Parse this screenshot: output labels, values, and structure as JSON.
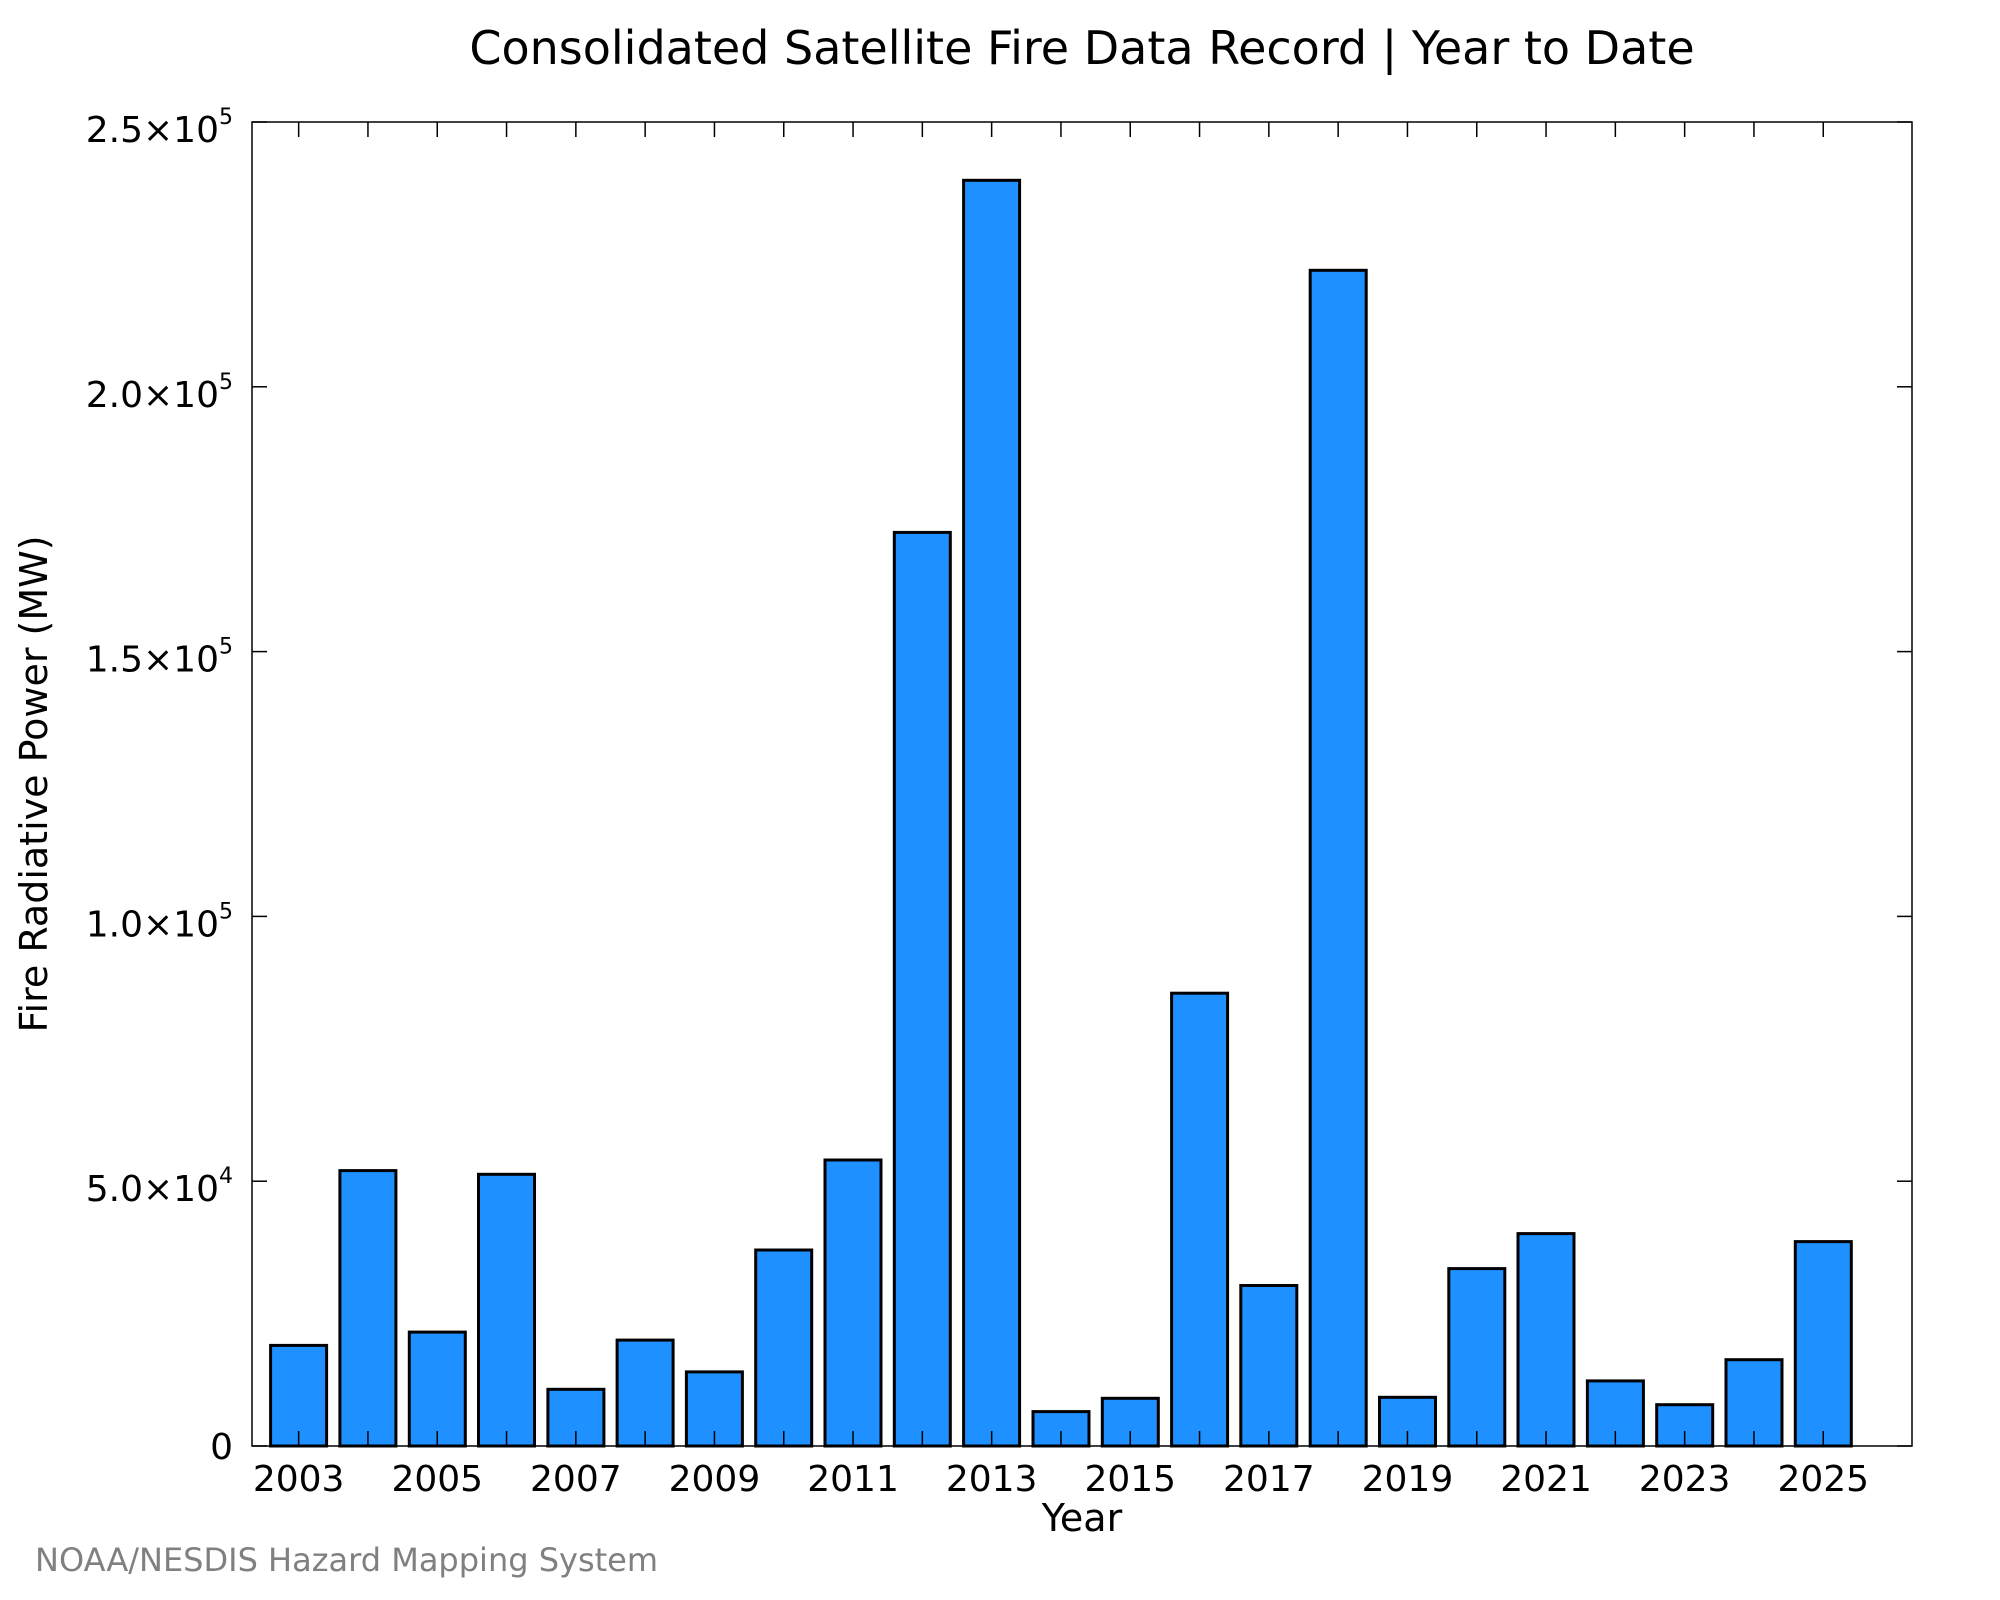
{
  "chart_data": {
    "type": "bar",
    "title": "Consolidated Satellite Fire Data Record | Year to Date",
    "xlabel": "Year",
    "ylabel": "Fire Radiative Power (MW)",
    "source": "NOAA/NESDIS Hazard Mapping System",
    "categories": [
      "2003",
      "2004",
      "2005",
      "2006",
      "2007",
      "2008",
      "2009",
      "2010",
      "2011",
      "2012",
      "2013",
      "2014",
      "2015",
      "2016",
      "2017",
      "2018",
      "2019",
      "2020",
      "2021",
      "2022",
      "2023",
      "2024",
      "2025"
    ],
    "values": [
      19000,
      52000,
      21500,
      51300,
      10700,
      20000,
      14000,
      37000,
      54000,
      172500,
      239000,
      6500,
      9000,
      85500,
      30300,
      222000,
      9200,
      33500,
      40100,
      12300,
      7800,
      16300,
      38600
    ],
    "xticks": [
      "2003",
      "2005",
      "2007",
      "2009",
      "2011",
      "2013",
      "2015",
      "2017",
      "2019",
      "2021",
      "2023",
      "2025"
    ],
    "yticks": [
      {
        "value": 0,
        "mantissa": "0",
        "exp": ""
      },
      {
        "value": 50000,
        "mantissa": "5.0×10",
        "exp": "4"
      },
      {
        "value": 100000,
        "mantissa": "1.0×10",
        "exp": "5"
      },
      {
        "value": 150000,
        "mantissa": "1.5×10",
        "exp": "5"
      },
      {
        "value": 200000,
        "mantissa": "2.0×10",
        "exp": "5"
      },
      {
        "value": 250000,
        "mantissa": "2.5×10",
        "exp": "5"
      }
    ],
    "ylim": [
      0,
      250000
    ],
    "bar_color": "#1e90ff",
    "bar_edge_color": "#000000",
    "grid": false,
    "legend": "none"
  }
}
